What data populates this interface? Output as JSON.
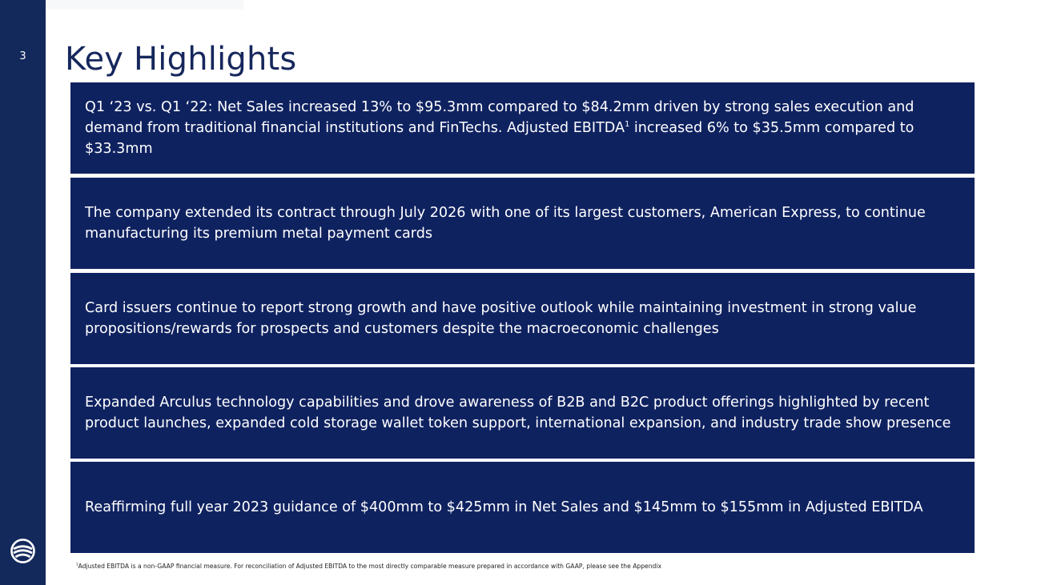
{
  "page": {
    "number": "3",
    "title": "Key Highlights"
  },
  "highlights": [
    {
      "text_before": "Q1 ‘23 vs. Q1 ‘22: Net Sales increased 13% to $95.3mm compared to $84.2mm driven by strong sales execution and demand from traditional financial institutions and FinTechs.  Adjusted EBITDA",
      "sup": "1",
      "text_after": " increased 6% to $35.5mm compared to $33.3mm"
    },
    {
      "text": "The company extended its contract through July 2026 with one of its largest customers, American Express, to continue manufacturing its premium metal payment cards"
    },
    {
      "text": "Card issuers continue to report strong growth and have positive outlook while maintaining investment in strong value propositions/rewards for prospects and customers despite the macroeconomic challenges"
    },
    {
      "text": "Expanded Arculus technology capabilities and drove awareness of B2B and B2C product offerings highlighted by recent product launches, expanded cold storage wallet token support, international expansion, and industry trade show presence"
    },
    {
      "text": "Reaffirming full year 2023 guidance of $400mm to $425mm in Net Sales and $145mm to $155mm in Adjusted EBITDA"
    }
  ],
  "footnote": {
    "marker": "1",
    "text": "Adjusted EBITDA is a non-GAAP financial measure.  For reconciliation of Adjusted EBITDA to the most directly comparable measure prepared in accordance with GAAP, please see the Appendix"
  },
  "colors": {
    "sidebar": "#13295c",
    "card": "#0f2260",
    "title": "#15275c"
  },
  "icons": {
    "logo": "company-logo-icon"
  }
}
